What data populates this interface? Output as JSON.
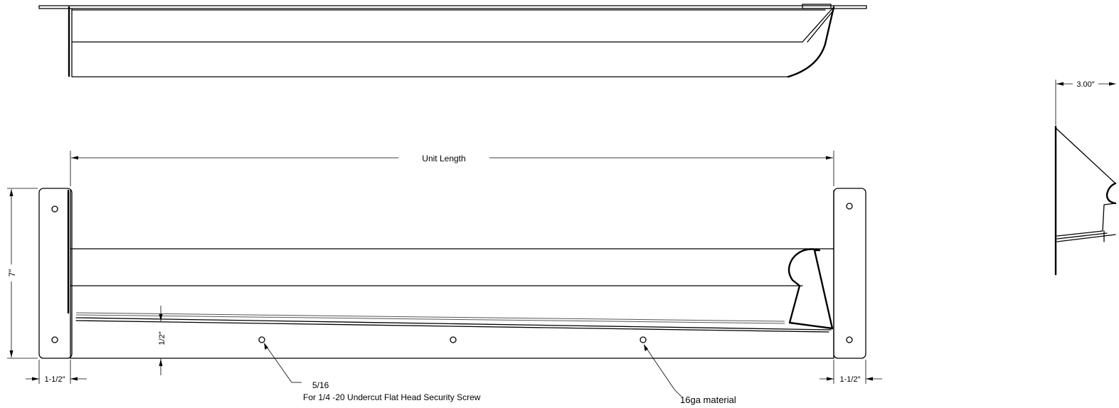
{
  "dimensions": {
    "unit_length": "Unit Length",
    "height": "7″",
    "flange_left": "1-1/2″",
    "flange_right": "1-1/2″",
    "edge_offset": "1/2″",
    "depth": "3.00″"
  },
  "callouts": {
    "hole_size": "5/16",
    "screw_spec": "For 1/4 -20 Undercut Flat Head Security Screw",
    "material": "16ga material"
  }
}
